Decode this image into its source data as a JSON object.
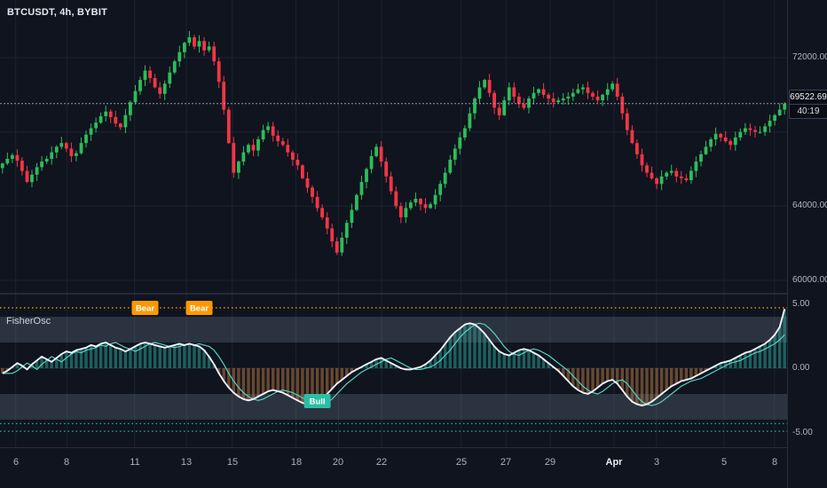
{
  "legend": {
    "title": "BTCUSDT, 4h, BYBIT"
  },
  "colors": {
    "background": "#0f141f",
    "grid": "#1b2231",
    "separator": "#39404f",
    "axis_text": "#b2b5be",
    "up": "#2ebd59",
    "down": "#f23645",
    "price_line": "#9598a1",
    "hist_up": "rgba(42,158,144,0.55)",
    "hist_down": "rgba(196,124,60,0.5)",
    "fisher_line": "#f0f3fa",
    "trigger_line": "#56d3c2",
    "band": "rgba(150,162,184,0.22)",
    "bear_badge": "#ff9800",
    "bull_badge": "#2abfa4",
    "osc_dotted_top": "#ff9800",
    "osc_dotted_bottom": "#26a69a"
  },
  "price_axis": {
    "ticks": [
      {
        "text": "72000.00",
        "value": 72000
      },
      {
        "text": "64000.00",
        "value": 64000
      },
      {
        "text": "60000.00",
        "value": 60000
      }
    ],
    "last_price_label": "69522.69",
    "countdown": "40:19"
  },
  "time_axis": {
    "ticks": [
      {
        "text": "6",
        "f": 0.02
      },
      {
        "text": "8",
        "f": 0.085
      },
      {
        "text": "11",
        "f": 0.171
      },
      {
        "text": "13",
        "f": 0.237
      },
      {
        "text": "15",
        "f": 0.295
      },
      {
        "text": "18",
        "f": 0.376
      },
      {
        "text": "20",
        "f": 0.43
      },
      {
        "text": "22",
        "f": 0.485
      },
      {
        "text": "25",
        "f": 0.586
      },
      {
        "text": "27",
        "f": 0.643
      },
      {
        "text": "29",
        "f": 0.699
      },
      {
        "text": "Apr",
        "f": 0.78,
        "major": true
      },
      {
        "text": "3",
        "f": 0.834
      },
      {
        "text": "5",
        "f": 0.92
      },
      {
        "text": "8",
        "f": 0.984
      }
    ]
  },
  "oscillator": {
    "name": "FisherOsc",
    "ticks": [
      {
        "text": "5.00",
        "value": 5
      },
      {
        "text": "0.00",
        "value": 0
      },
      {
        "text": "-5.00",
        "value": -5
      }
    ],
    "bands": [
      [
        2,
        4
      ],
      [
        -2,
        -4
      ]
    ],
    "dotted_lines": [
      {
        "value": 4.7,
        "color": "#ff9800"
      },
      {
        "value": -4.3,
        "color": "#26a69a"
      },
      {
        "value": -4.9,
        "color": "#26a69a"
      }
    ],
    "signals": [
      {
        "label": "Bear",
        "index": 29,
        "type": "bear"
      },
      {
        "label": "Bear",
        "index": 40,
        "type": "bear"
      },
      {
        "label": "Bull",
        "index": 64,
        "type": "bull"
      }
    ]
  },
  "chart_data": {
    "type": "candlestick",
    "symbol": "BTCUSDT",
    "interval": "4h",
    "exchange": "BYBIT",
    "last_price": 69522.69,
    "grid_prices": [
      72000,
      68000,
      64000,
      60000
    ],
    "price_ticks": [
      72000,
      64000,
      60000
    ],
    "price_range_visible": [
      60000,
      73500
    ],
    "closes": [
      66300,
      66550,
      66750,
      66450,
      65900,
      65300,
      65700,
      66100,
      66400,
      66550,
      66900,
      67200,
      67400,
      67100,
      66700,
      66850,
      67400,
      67850,
      68200,
      68500,
      68850,
      69100,
      68800,
      68450,
      68250,
      68900,
      69600,
      70200,
      70800,
      71300,
      70900,
      70400,
      70050,
      70600,
      71200,
      71800,
      72300,
      72800,
      73100,
      72600,
      72900,
      72400,
      72600,
      71800,
      70700,
      69200,
      67400,
      65800,
      66400,
      66900,
      67300,
      67000,
      67600,
      68100,
      68300,
      67800,
      67500,
      67300,
      66900,
      66500,
      66200,
      65500,
      65000,
      64500,
      63900,
      63400,
      62800,
      62100,
      61500,
      62300,
      63100,
      63800,
      64600,
      65300,
      66000,
      66700,
      67200,
      66400,
      65600,
      64800,
      64000,
      63400,
      63900,
      64200,
      64400,
      64100,
      63900,
      64100,
      64600,
      65200,
      65800,
      66500,
      67100,
      67700,
      68200,
      69000,
      69800,
      70400,
      70800,
      70100,
      69300,
      68900,
      69700,
      70400,
      69900,
      69500,
      69300,
      69800,
      70100,
      70300,
      70000,
      69800,
      69600,
      69700,
      69800,
      69900,
      70100,
      70300,
      70400,
      70100,
      69900,
      69700,
      70000,
      70300,
      70600,
      69900,
      69000,
      68100,
      67400,
      66800,
      66200,
      65800,
      65500,
      65200,
      65600,
      65800,
      65900,
      65600,
      65500,
      65400,
      65900,
      66400,
      66800,
      67200,
      67600,
      67900,
      67700,
      67500,
      67300,
      67700,
      68000,
      68200,
      68100,
      68000,
      68000,
      68300,
      68600,
      68900,
      69200,
      69522.69
    ],
    "oscillator_values": [
      -0.4,
      -0.2,
      0.1,
      0.4,
      0.2,
      -0.1,
      0.3,
      0.6,
      0.9,
      0.7,
      0.5,
      0.8,
      1.1,
      1.3,
      1.2,
      1.4,
      1.5,
      1.6,
      1.8,
      1.7,
      1.9,
      2.0,
      1.8,
      1.6,
      1.5,
      1.3,
      1.5,
      1.7,
      1.9,
      2.0,
      1.9,
      1.8,
      1.7,
      1.6,
      1.7,
      1.8,
      1.9,
      1.8,
      1.9,
      1.8,
      1.7,
      1.4,
      0.9,
      0.3,
      -0.4,
      -1.0,
      -1.5,
      -1.9,
      -2.2,
      -2.4,
      -2.5,
      -2.4,
      -2.2,
      -2.0,
      -1.8,
      -1.7,
      -1.8,
      -1.9,
      -2.1,
      -2.3,
      -2.5,
      -2.7,
      -2.8,
      -2.9,
      -2.7,
      -2.4,
      -2.0,
      -1.6,
      -1.2,
      -0.9,
      -0.6,
      -0.3,
      -0.1,
      0.1,
      0.3,
      0.5,
      0.7,
      0.8,
      0.6,
      0.4,
      0.2,
      0.0,
      -0.1,
      -0.1,
      0.0,
      0.1,
      0.3,
      0.6,
      1.0,
      1.4,
      1.9,
      2.4,
      2.8,
      3.1,
      3.4,
      3.5,
      3.4,
      3.1,
      2.7,
      2.2,
      1.7,
      1.3,
      1.1,
      1.0,
      1.2,
      1.4,
      1.5,
      1.4,
      1.2,
      1.0,
      0.7,
      0.4,
      0.1,
      -0.2,
      -0.6,
      -1.0,
      -1.4,
      -1.7,
      -1.9,
      -2.0,
      -1.8,
      -1.5,
      -1.2,
      -1.0,
      -0.9,
      -1.2,
      -1.7,
      -2.2,
      -2.6,
      -2.8,
      -2.9,
      -2.8,
      -2.6,
      -2.3,
      -2.0,
      -1.7,
      -1.4,
      -1.2,
      -1.0,
      -0.9,
      -0.8,
      -0.6,
      -0.4,
      -0.2,
      0.0,
      0.2,
      0.4,
      0.5,
      0.6,
      0.8,
      1.0,
      1.2,
      1.3,
      1.5,
      1.7,
      1.9,
      2.2,
      2.6,
      3.2,
      4.6
    ]
  }
}
